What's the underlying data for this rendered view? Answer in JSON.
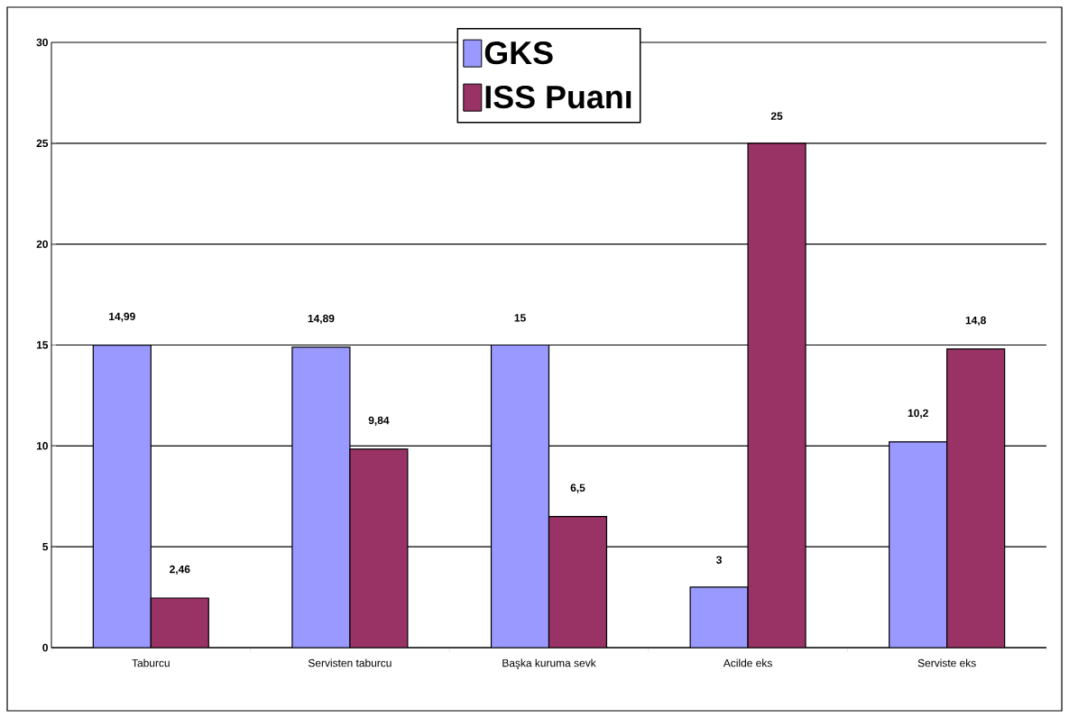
{
  "chart_data": {
    "type": "bar",
    "categories": [
      "Taburcu",
      "Servisten taburcu",
      "Başka kuruma sevk",
      "Acilde eks",
      "Serviste eks"
    ],
    "series": [
      {
        "name": "GKS",
        "color": "#9999ff",
        "values": [
          14.99,
          14.89,
          15,
          3,
          10.2
        ],
        "value_labels": [
          "14,99",
          "14,89",
          "15",
          "3",
          "10,2"
        ]
      },
      {
        "name": "ISS Puanı",
        "color": "#993366",
        "values": [
          2.46,
          9.84,
          6.5,
          25,
          14.8
        ],
        "value_labels": [
          "2,46",
          "9,84",
          "6,5",
          "25",
          "14,8"
        ]
      }
    ],
    "ylim": [
      0,
      30
    ],
    "yticks": [
      0,
      5,
      10,
      15,
      20,
      25,
      30
    ],
    "grid": "y",
    "legend": "top"
  }
}
